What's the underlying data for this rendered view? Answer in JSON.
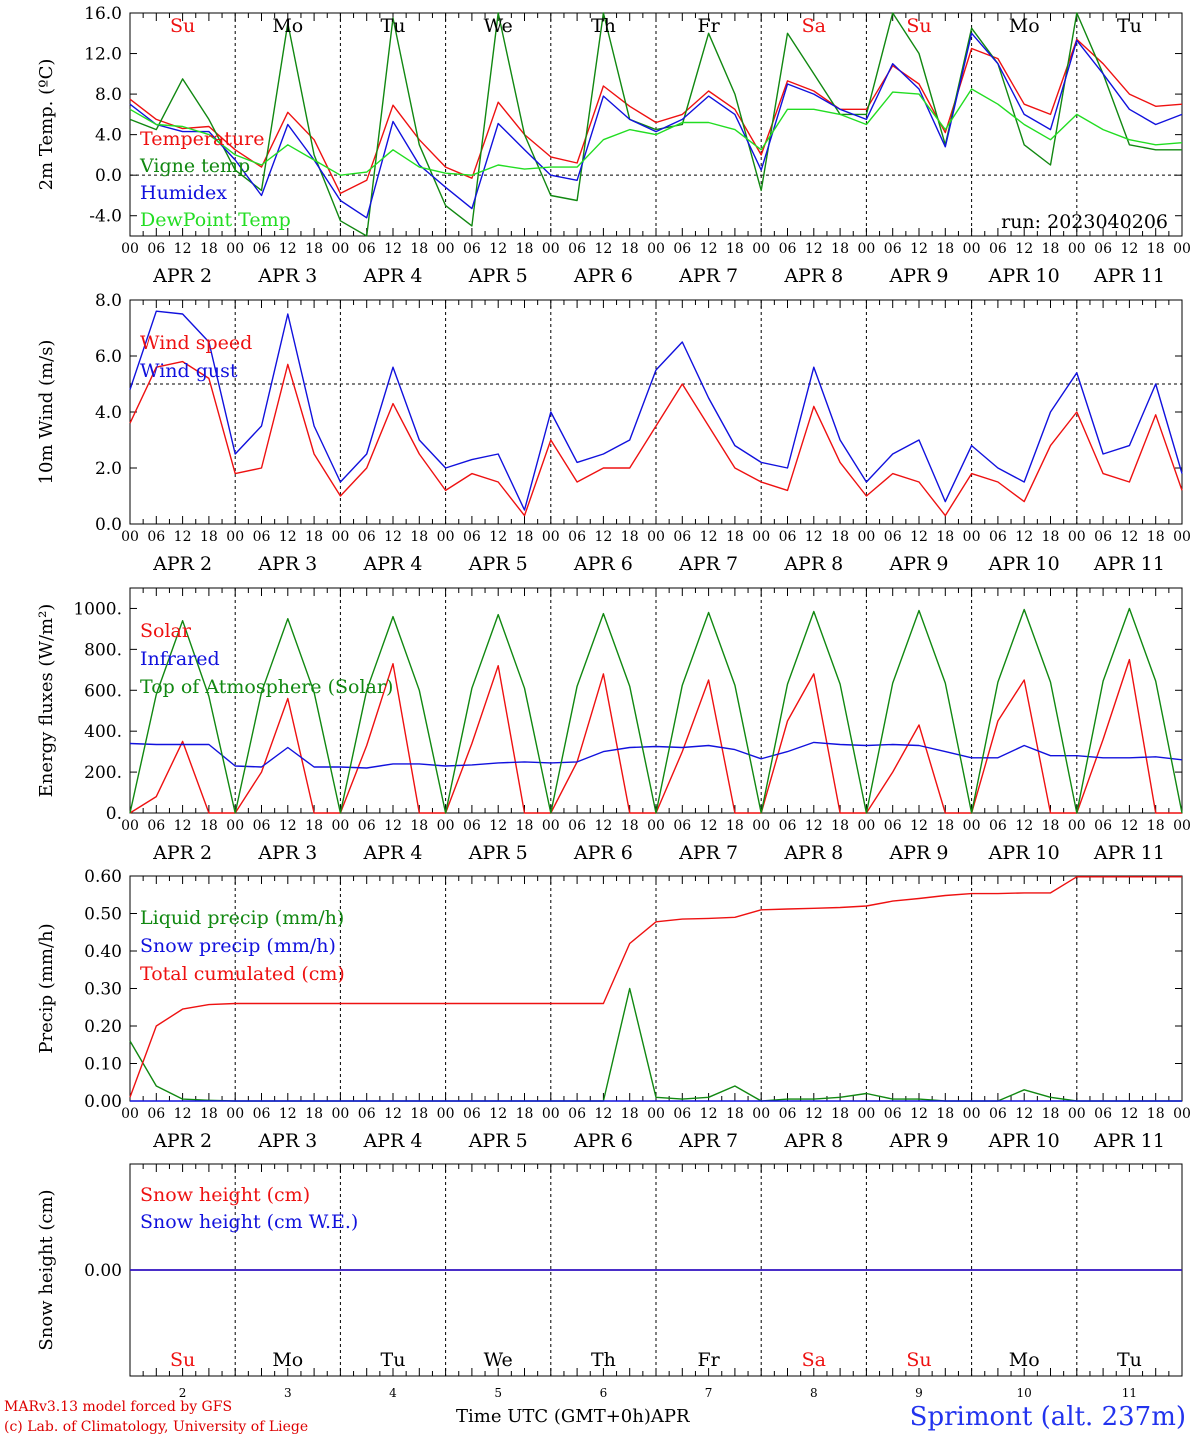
{
  "chart_data": [
    {
      "type": "line",
      "ylabel": "2m Temp. (ºC)",
      "ylim": [
        -6,
        16
      ],
      "yticks": [
        -4.0,
        0.0,
        4.0,
        8.0,
        12.0,
        16.0
      ],
      "ytick_labels": [
        "-4.0",
        "0.0",
        "4.0",
        "8.0",
        "12.0",
        "16.0"
      ],
      "reference_line": 0,
      "run_label": "run: 2023040206",
      "legend": [
        {
          "name": "Temperature",
          "color": "#ee1111"
        },
        {
          "name": "Vigne temp",
          "color": "#118811"
        },
        {
          "name": "Humidex",
          "color": "#1111dd"
        },
        {
          "name": "DewPoint Temp",
          "color": "#22dd22"
        }
      ],
      "x": [
        0,
        6,
        12,
        18,
        24,
        30,
        36,
        42,
        48,
        54,
        60,
        66,
        72,
        78,
        84,
        90,
        96,
        102,
        108,
        114,
        120,
        126,
        132,
        138,
        144,
        150,
        156,
        162,
        168,
        174,
        180,
        186,
        192,
        198,
        204,
        210,
        216,
        222,
        228,
        234,
        240
      ],
      "series": [
        {
          "name": "Temperature",
          "color": "#ee1111",
          "values": [
            7.5,
            5.5,
            4.6,
            4.8,
            2.5,
            0.8,
            6.2,
            3.5,
            -1.8,
            -0.5,
            6.9,
            3.5,
            0.8,
            -0.3,
            7.2,
            4.0,
            1.8,
            1.2,
            8.8,
            6.8,
            5.2,
            6.0,
            8.3,
            6.5,
            2.0,
            9.3,
            8.3,
            6.5,
            6.5,
            10.8,
            9.0,
            4.2,
            12.5,
            11.5,
            7.0,
            6.0,
            13.4,
            11.0,
            8.0,
            6.8,
            7.0
          ]
        },
        {
          "name": "Vigne temp",
          "color": "#118811",
          "values": [
            5.5,
            4.5,
            9.5,
            5.5,
            0.5,
            -1.5,
            15.0,
            2.0,
            -4.5,
            -6.0,
            15.5,
            3.0,
            -3.0,
            -5.0,
            16.0,
            4.0,
            -2.0,
            -2.5,
            16.0,
            5.5,
            4.5,
            5.0,
            14.0,
            8.0,
            -1.5,
            14.0,
            10.0,
            6.0,
            6.0,
            16.0,
            12.0,
            3.0,
            14.5,
            11.0,
            3.0,
            1.0,
            16.0,
            10.0,
            3.0,
            2.5,
            2.5
          ]
        },
        {
          "name": "Humidex",
          "color": "#1111dd",
          "values": [
            7.0,
            5.0,
            4.3,
            4.3,
            1.5,
            -2.0,
            5.0,
            1.5,
            -2.5,
            -4.2,
            5.3,
            1.0,
            -1.2,
            -3.3,
            5.1,
            2.5,
            0.0,
            -0.5,
            7.8,
            5.5,
            4.3,
            5.5,
            7.8,
            6.0,
            0.5,
            9.0,
            8.0,
            6.5,
            5.5,
            11.0,
            8.5,
            2.8,
            14.0,
            11.0,
            6.0,
            4.5,
            13.3,
            10.0,
            6.5,
            5.0,
            6.0
          ]
        },
        {
          "name": "DewPoint Temp",
          "color": "#22dd22",
          "values": [
            6.5,
            5.0,
            4.8,
            4.0,
            2.0,
            1.0,
            3.0,
            1.5,
            0.0,
            0.3,
            2.5,
            0.8,
            0.2,
            0.0,
            1.0,
            0.6,
            0.8,
            0.8,
            3.5,
            4.5,
            4.0,
            5.2,
            5.2,
            4.5,
            2.5,
            6.5,
            6.5,
            6.0,
            5.0,
            8.2,
            8.0,
            4.5,
            8.5,
            7.0,
            5.0,
            3.5,
            6.0,
            4.5,
            3.5,
            3.0,
            3.2
          ]
        }
      ]
    },
    {
      "type": "line",
      "ylabel": "10m Wind (m/s)",
      "ylim": [
        0,
        8
      ],
      "yticks": [
        0,
        2,
        4,
        6,
        8
      ],
      "ytick_labels": [
        "0.0",
        "2.0",
        "4.0",
        "6.0",
        "8.0"
      ],
      "reference_line": 5,
      "legend": [
        {
          "name": "Wind speed",
          "color": "#ee1111"
        },
        {
          "name": "Wind gust",
          "color": "#1111dd"
        }
      ],
      "x": [
        0,
        6,
        12,
        18,
        24,
        30,
        36,
        42,
        48,
        54,
        60,
        66,
        72,
        78,
        84,
        90,
        96,
        102,
        108,
        114,
        120,
        126,
        132,
        138,
        144,
        150,
        156,
        162,
        168,
        174,
        180,
        186,
        192,
        198,
        204,
        210,
        216,
        222,
        228,
        234,
        240
      ],
      "series": [
        {
          "name": "Wind speed",
          "color": "#ee1111",
          "values": [
            3.6,
            5.6,
            5.8,
            5.2,
            1.8,
            2.0,
            5.7,
            2.5,
            1.0,
            2.0,
            4.3,
            2.5,
            1.2,
            1.8,
            1.5,
            0.3,
            3.0,
            1.5,
            2.0,
            2.0,
            3.5,
            5.0,
            3.5,
            2.0,
            1.5,
            1.2,
            4.2,
            2.2,
            1.0,
            1.8,
            1.5,
            0.3,
            1.8,
            1.5,
            0.8,
            2.8,
            4.0,
            1.8,
            1.5,
            3.9,
            1.2
          ]
        },
        {
          "name": "Wind gust",
          "color": "#1111dd",
          "values": [
            4.8,
            7.6,
            7.5,
            6.5,
            2.5,
            3.5,
            7.5,
            3.5,
            1.5,
            2.5,
            5.6,
            3.0,
            2.0,
            2.3,
            2.5,
            0.5,
            4.0,
            2.2,
            2.5,
            3.0,
            5.5,
            6.5,
            4.5,
            2.8,
            2.2,
            2.0,
            5.6,
            3.0,
            1.5,
            2.5,
            3.0,
            0.8,
            2.8,
            2.0,
            1.5,
            4.0,
            5.4,
            2.5,
            2.8,
            5.0,
            1.8
          ]
        }
      ]
    },
    {
      "type": "line",
      "ylabel": "Energy fluxes (W/m²)",
      "ylim": [
        0,
        1100
      ],
      "yticks": [
        0,
        200,
        400,
        600,
        800,
        1000
      ],
      "ytick_labels": [
        "0.",
        "200.",
        "400.",
        "600.",
        "800.",
        "1000."
      ],
      "legend": [
        {
          "name": "Solar",
          "color": "#ee1111"
        },
        {
          "name": "Infrared",
          "color": "#1111dd"
        },
        {
          "name": "Top of Atmosphere (Solar)",
          "color": "#118811"
        }
      ],
      "x": [
        0,
        6,
        12,
        18,
        24,
        30,
        36,
        42,
        48,
        54,
        60,
        66,
        72,
        78,
        84,
        90,
        96,
        102,
        108,
        114,
        120,
        126,
        132,
        138,
        144,
        150,
        156,
        162,
        168,
        174,
        180,
        186,
        192,
        198,
        204,
        210,
        216,
        222,
        228,
        234,
        240
      ],
      "series": [
        {
          "name": "Solar",
          "color": "#ee1111",
          "values": [
            0,
            80,
            350,
            0,
            0,
            200,
            560,
            0,
            0,
            330,
            730,
            0,
            0,
            340,
            720,
            0,
            0,
            250,
            680,
            0,
            0,
            300,
            650,
            0,
            0,
            450,
            680,
            0,
            0,
            200,
            430,
            0,
            0,
            450,
            650,
            0,
            0,
            360,
            750,
            0,
            0
          ]
        },
        {
          "name": "Infrared",
          "color": "#1111dd",
          "values": [
            340,
            335,
            335,
            335,
            230,
            225,
            320,
            225,
            225,
            220,
            240,
            240,
            230,
            235,
            245,
            250,
            245,
            250,
            300,
            320,
            325,
            320,
            330,
            310,
            265,
            300,
            345,
            335,
            330,
            335,
            330,
            300,
            270,
            270,
            330,
            280,
            280,
            270,
            270,
            275,
            260
          ]
        },
        {
          "name": "Top of Atmosphere (Solar)",
          "color": "#118811",
          "values": [
            0,
            580,
            940,
            570,
            0,
            590,
            950,
            590,
            0,
            600,
            960,
            600,
            0,
            610,
            970,
            610,
            0,
            620,
            975,
            620,
            0,
            625,
            980,
            625,
            0,
            630,
            985,
            630,
            0,
            635,
            990,
            635,
            0,
            640,
            995,
            640,
            0,
            645,
            1000,
            645,
            0
          ]
        }
      ]
    },
    {
      "type": "line",
      "ylabel": "Precip (mm/h)",
      "ylim": [
        0,
        0.6
      ],
      "yticks": [
        0,
        0.1,
        0.2,
        0.3,
        0.4,
        0.5,
        0.6
      ],
      "ytick_labels": [
        "0.00",
        "0.10",
        "0.20",
        "0.30",
        "0.40",
        "0.50",
        "0.60"
      ],
      "legend": [
        {
          "name": "Liquid precip (mm/h)",
          "color": "#118811"
        },
        {
          "name": "Snow precip (mm/h)",
          "color": "#1111dd"
        },
        {
          "name": "Total cumulated (cm)",
          "color": "#ee1111"
        }
      ],
      "x": [
        0,
        6,
        12,
        18,
        24,
        30,
        36,
        42,
        48,
        54,
        60,
        66,
        72,
        78,
        84,
        90,
        96,
        102,
        108,
        114,
        120,
        126,
        132,
        138,
        144,
        150,
        156,
        162,
        168,
        174,
        180,
        186,
        192,
        198,
        204,
        210,
        216,
        222,
        228,
        234,
        240
      ],
      "series": [
        {
          "name": "Liquid precip (mm/h)",
          "color": "#118811",
          "values": [
            0.16,
            0.04,
            0.005,
            0.002,
            0,
            0,
            0,
            0,
            0,
            0,
            0,
            0,
            0,
            0,
            0,
            0,
            0,
            0,
            0,
            0.3,
            0.01,
            0.005,
            0.01,
            0.04,
            0,
            0.005,
            0.005,
            0.01,
            0.02,
            0.005,
            0.005,
            0,
            0,
            0,
            0.03,
            0.01,
            0,
            0,
            0,
            0,
            0
          ]
        },
        {
          "name": "Snow precip (mm/h)",
          "color": "#1111dd",
          "values": [
            0,
            0,
            0,
            0,
            0,
            0,
            0,
            0,
            0,
            0,
            0,
            0,
            0,
            0,
            0,
            0,
            0,
            0,
            0,
            0,
            0,
            0,
            0,
            0,
            0,
            0,
            0,
            0,
            0,
            0,
            0,
            0,
            0,
            0,
            0,
            0,
            0,
            0,
            0,
            0,
            0
          ]
        },
        {
          "name": "Total cumulated (cm)",
          "color": "#ee1111",
          "values": [
            0.01,
            0.2,
            0.245,
            0.257,
            0.26,
            0.26,
            0.26,
            0.26,
            0.26,
            0.26,
            0.26,
            0.26,
            0.26,
            0.26,
            0.26,
            0.26,
            0.26,
            0.26,
            0.26,
            0.42,
            0.478,
            0.485,
            0.487,
            0.49,
            0.51,
            0.512,
            0.514,
            0.516,
            0.52,
            0.533,
            0.54,
            0.548,
            0.553,
            0.553,
            0.555,
            0.555,
            0.598,
            0.598,
            0.598,
            0.598,
            0.598
          ]
        }
      ]
    },
    {
      "type": "line",
      "ylabel": "Snow height (cm)",
      "yticks": [
        0
      ],
      "ytick_labels": [
        "0.00"
      ],
      "legend": [
        {
          "name": "Snow height (cm)",
          "color": "#ee1111"
        },
        {
          "name": "Snow height (cm W.E.)",
          "color": "#1111dd"
        }
      ],
      "x": [
        0,
        240
      ],
      "series": [
        {
          "name": "Snow height (cm)",
          "color": "#ee1111",
          "values": [
            0,
            0
          ]
        },
        {
          "name": "Snow height (cm W.E.)",
          "color": "#1111dd",
          "values": [
            0,
            0
          ]
        }
      ]
    }
  ],
  "x_axis": {
    "hour_ticks": [
      "00",
      "06",
      "12",
      "18"
    ],
    "final_tick": "00",
    "dates": [
      "APR  2",
      "APR  3",
      "APR  4",
      "APR  5",
      "APR  6",
      "APR  7",
      "APR  8",
      "APR  9",
      "APR 10",
      "APR 11"
    ],
    "day_numbers": [
      "2",
      "3",
      "4",
      "5",
      "6",
      "7",
      "8",
      "9",
      "10",
      "11"
    ],
    "weekdays": [
      {
        "label": "Su",
        "color": "#ee1111"
      },
      {
        "label": "Mo",
        "color": "#000000"
      },
      {
        "label": "Tu",
        "color": "#000000"
      },
      {
        "label": "We",
        "color": "#000000"
      },
      {
        "label": "Th",
        "color": "#000000"
      },
      {
        "label": "Fr",
        "color": "#000000"
      },
      {
        "label": "Sa",
        "color": "#ee1111"
      },
      {
        "label": "Su",
        "color": "#ee1111"
      },
      {
        "label": "Mo",
        "color": "#000000"
      },
      {
        "label": "Tu",
        "color": "#000000"
      }
    ],
    "time_label": "Time UTC (GMT+0h)",
    "month_label": "APR"
  },
  "footer": {
    "credit_line1": "MARv3.13 model forced by GFS",
    "credit_line2": "(c) Lab. of Climatology, University of Liege",
    "station": "Sprimont (alt. 237m)"
  }
}
